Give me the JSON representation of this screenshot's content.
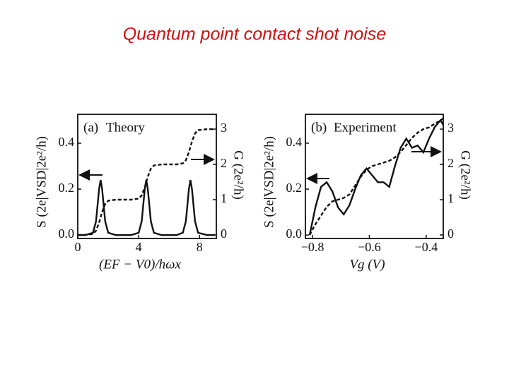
{
  "title": "Quantum point contact shot noise",
  "chart_data": [
    {
      "type": "line",
      "panel_label": "(a)",
      "title": "Theory",
      "xlabel": "(EF − V0)/hωx",
      "ylabel": "S (2e|VSD|2e²/h)",
      "y2label": "G (2e²/h)",
      "x": [
        0,
        0.5,
        1,
        1.2,
        1.4,
        1.5,
        1.6,
        1.8,
        2,
        2.5,
        3,
        3.5,
        4,
        4.2,
        4.4,
        4.5,
        4.6,
        4.8,
        5,
        5.5,
        6,
        6.5,
        6.9,
        7.1,
        7.3,
        7.4,
        7.5,
        7.7,
        7.9,
        8.5,
        9
      ],
      "series": [
        {
          "color": "#111111",
          "dashed": false,
          "values": [
            0,
            0,
            0.01,
            0.06,
            0.2,
            0.24,
            0.2,
            0.06,
            0.01,
            0,
            0,
            0,
            0.01,
            0.06,
            0.2,
            0.24,
            0.2,
            0.06,
            0.01,
            0,
            0,
            0,
            0.01,
            0.06,
            0.2,
            0.24,
            0.2,
            0.06,
            0.01,
            0,
            0
          ]
        },
        {
          "color": "#111111",
          "dashed": true,
          "axis": "y2",
          "values": [
            0,
            0,
            0.03,
            0.12,
            0.35,
            0.5,
            0.65,
            0.88,
            0.97,
            1,
            1,
            1,
            1.03,
            1.12,
            1.35,
            1.5,
            1.65,
            1.88,
            1.97,
            2,
            2,
            2,
            2.03,
            2.12,
            2.35,
            2.5,
            2.65,
            2.88,
            2.97,
            3,
            3
          ]
        }
      ],
      "xlim": [
        0,
        9.1
      ],
      "xticks": [
        0,
        4,
        8
      ],
      "ylim": [
        -0.015,
        0.526
      ],
      "yticks": [
        {
          "value": 0,
          "label": "0.0"
        },
        0.2,
        0.4
      ],
      "y2lim": [
        -0.1,
        3.42
      ],
      "y2ticks": [
        0,
        1,
        2,
        3
      ]
    },
    {
      "type": "line",
      "panel_label": "(b)",
      "title": "Experiment",
      "xlabel": "Vg (V)",
      "ylabel": "S (2e|VSD|2e²/h)",
      "y2label": "G (2e²/h)",
      "x": [
        -0.81,
        -0.79,
        -0.77,
        -0.75,
        -0.73,
        -0.71,
        -0.69,
        -0.67,
        -0.65,
        -0.63,
        -0.61,
        -0.59,
        -0.57,
        -0.55,
        -0.53,
        -0.51,
        -0.49,
        -0.47,
        -0.45,
        -0.43,
        -0.41,
        -0.39,
        -0.37,
        -0.35,
        -0.34
      ],
      "series": [
        {
          "color": "#111111",
          "dashed": false,
          "values": [
            0,
            0.12,
            0.21,
            0.23,
            0.19,
            0.12,
            0.09,
            0.13,
            0.2,
            0.26,
            0.29,
            0.26,
            0.23,
            0.23,
            0.21,
            0.3,
            0.38,
            0.42,
            0.38,
            0.39,
            0.36,
            0.42,
            0.47,
            0.5,
            0.48
          ]
        },
        {
          "color": "#111111",
          "dashed": true,
          "axis": "y2",
          "values": [
            0,
            0.3,
            0.55,
            0.8,
            0.95,
            1,
            1.05,
            1.15,
            1.4,
            1.65,
            1.85,
            1.95,
            2,
            2.05,
            2.1,
            2.2,
            2.35,
            2.55,
            2.75,
            2.9,
            3,
            3.05,
            3.15,
            3.25,
            3.3
          ]
        }
      ],
      "xlim": [
        -0.825,
        -0.34
      ],
      "xticks": [
        {
          "value": -0.8,
          "label": "−0.8"
        },
        {
          "value": -0.6,
          "label": "−0.6"
        },
        {
          "value": -0.4,
          "label": "−0.4"
        }
      ],
      "ylim": [
        -0.015,
        0.526
      ],
      "yticks": [
        {
          "value": 0,
          "label": "0.0"
        },
        0.2,
        0.4
      ],
      "y2lim": [
        -0.1,
        3.42
      ],
      "y2ticks": [
        0,
        1,
        2,
        3
      ]
    }
  ]
}
